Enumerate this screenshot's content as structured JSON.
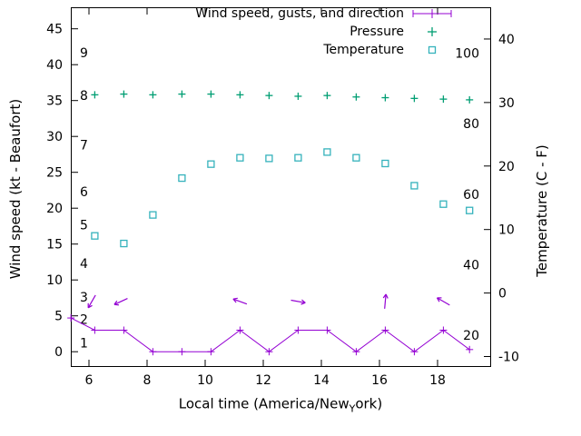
{
  "chart_data": {
    "type": "line",
    "title": "",
    "background": "#ffffff",
    "legend": [
      {
        "label": "Wind speed, gusts, and direction",
        "marker": "errorbar-plus",
        "color": "#9400d3"
      },
      {
        "label": "Pressure",
        "marker": "plus",
        "color": "#009e73"
      },
      {
        "label": "Temperature",
        "marker": "open-square",
        "color": "#35b2bc"
      }
    ],
    "x_axis": {
      "title_pre": "Local time (America/New",
      "title_sub": "Y",
      "title_post": "ork)",
      "ticks": [
        6,
        8,
        10,
        12,
        14,
        16,
        18
      ],
      "range": [
        5.375,
        19.8125
      ]
    },
    "y_left": {
      "title": "Wind speed (kt - Beaufort)",
      "ticks": [
        0,
        5,
        10,
        15,
        20,
        25,
        30,
        35,
        40,
        45
      ],
      "range": [
        -2,
        48
      ],
      "inner_scale": "Beaufort",
      "beaufort_labels": [
        {
          "label": "1",
          "kt": 1.2
        },
        {
          "label": "2",
          "kt": 4.5
        },
        {
          "label": "3",
          "kt": 7.6
        },
        {
          "label": "4",
          "kt": 12.3
        },
        {
          "label": "5",
          "kt": 17.7
        },
        {
          "label": "6",
          "kt": 22.3
        },
        {
          "label": "7",
          "kt": 28.8
        },
        {
          "label": "8",
          "kt": 35.7
        },
        {
          "label": "9",
          "kt": 41.7
        }
      ]
    },
    "y_right": {
      "title": "Temperature (C - F)",
      "ticks": [
        -10,
        0,
        10,
        20,
        30,
        40
      ],
      "range": [
        -11.5,
        45
      ],
      "inner_scale": "Fahrenheit",
      "fahrenheit_labels": [
        20,
        40,
        60,
        80,
        100
      ]
    },
    "series": {
      "wind": {
        "name": "Wind speed",
        "color": "#9400d3",
        "axis": "left",
        "x": [
          5.38,
          6.2,
          7.2,
          8.2,
          9.2,
          10.2,
          11.2,
          12.2,
          13.2,
          14.2,
          15.2,
          16.2,
          17.2,
          18.2,
          19.1
        ],
        "kt": [
          4.7,
          3,
          3,
          0,
          0,
          0,
          3,
          0,
          3,
          3,
          0,
          3,
          0,
          3,
          0.3
        ]
      },
      "wind_direction": {
        "name": "Wind direction arrows",
        "color": "#9400d3",
        "kt_level": 7,
        "arrows": [
          {
            "x": 6.1,
            "deg": 240
          },
          {
            "x": 7.1,
            "deg": 205
          },
          {
            "x": 11.2,
            "deg": 160
          },
          {
            "x": 13.2,
            "deg": 350
          },
          {
            "x": 16.2,
            "deg": 85
          },
          {
            "x": 18.2,
            "deg": 150
          }
        ]
      },
      "pressure": {
        "name": "Pressure",
        "color": "#009e73",
        "axis": "left-position",
        "x": [
          6.2,
          7.2,
          8.2,
          9.2,
          10.2,
          11.2,
          12.2,
          13.2,
          14.2,
          15.2,
          16.2,
          17.2,
          18.2,
          19.1
        ],
        "kt_position": [
          35.8,
          35.9,
          35.8,
          35.9,
          35.9,
          35.8,
          35.7,
          35.6,
          35.7,
          35.5,
          35.4,
          35.3,
          35.2,
          35.1
        ]
      },
      "temperature": {
        "name": "Temperature",
        "color": "#35b2bc",
        "axis": "right",
        "x": [
          6.2,
          7.2,
          8.2,
          9.2,
          10.2,
          11.2,
          12.2,
          13.2,
          14.2,
          15.2,
          16.2,
          17.2,
          18.2,
          19.1
        ],
        "celsius": [
          9.0,
          7.8,
          12.3,
          18.1,
          20.3,
          21.3,
          21.2,
          21.3,
          22.2,
          21.3,
          20.4,
          16.9,
          14.0,
          13.0
        ]
      }
    }
  }
}
